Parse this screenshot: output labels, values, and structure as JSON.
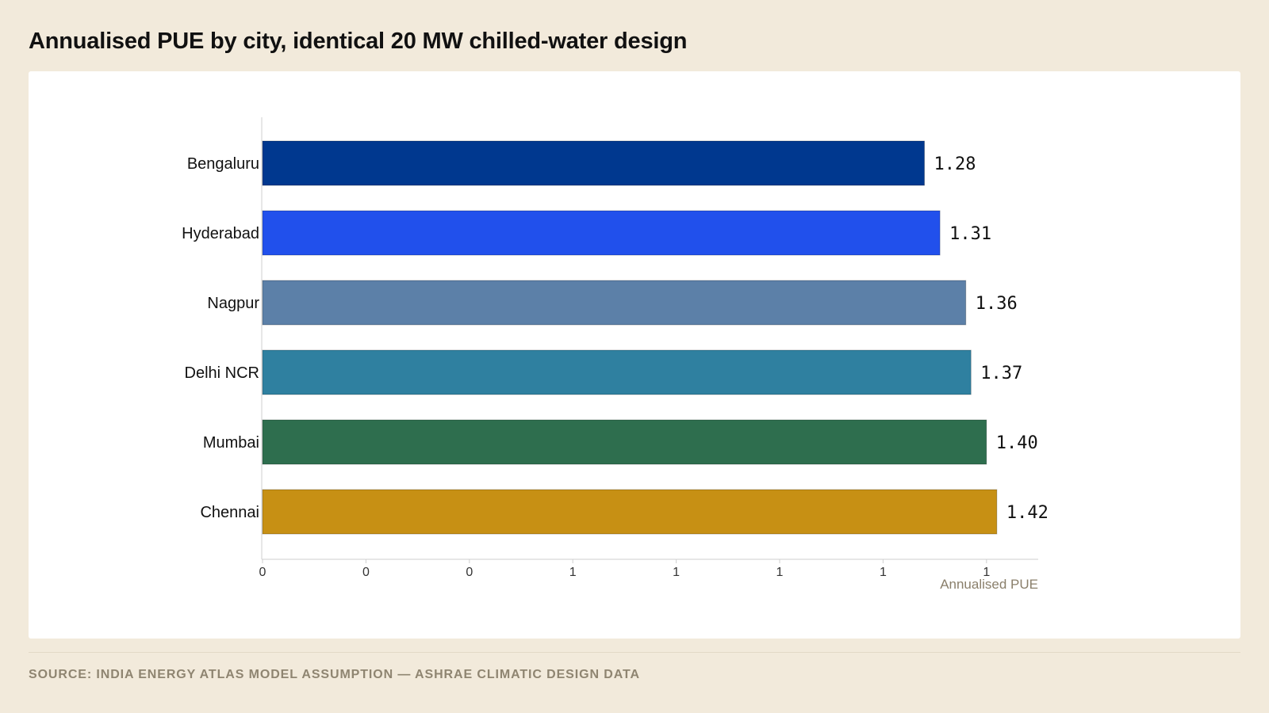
{
  "title": "Annualised PUE by city, identical 20 MW chilled-water design",
  "source": "SOURCE: INDIA ENERGY ATLAS MODEL ASSUMPTION — ASHRAE CLIMATIC DESIGN DATA",
  "chart_data": {
    "type": "bar",
    "orientation": "horizontal",
    "categories": [
      "Bengaluru",
      "Hyderabad",
      "Nagpur",
      "Delhi NCR",
      "Mumbai",
      "Chennai"
    ],
    "values": [
      1.28,
      1.31,
      1.36,
      1.37,
      1.4,
      1.42
    ],
    "value_labels": [
      "1.28",
      "1.31",
      "1.36",
      "1.37",
      "1.40",
      "1.42"
    ],
    "colors": [
      "#00388f",
      "#2150ec",
      "#5c80a8",
      "#2f80a0",
      "#2e6e4e",
      "#c79014"
    ],
    "xlabel": "Annualised PUE",
    "ylabel": "",
    "xlim": [
      0,
      1.5
    ],
    "x_ticks": [
      0,
      0.2,
      0.4,
      0.6,
      0.8,
      1.0,
      1.2,
      1.4
    ],
    "x_tick_labels": [
      "0",
      "0",
      "0",
      "1",
      "1",
      "1",
      "1",
      "1"
    ],
    "grid": false,
    "legend": "none"
  }
}
